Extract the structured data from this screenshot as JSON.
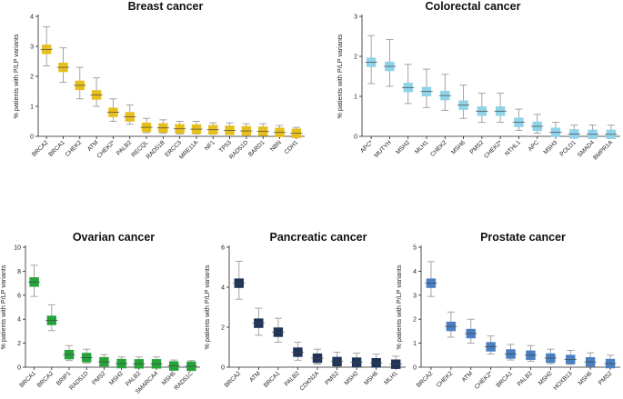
{
  "figure": {
    "ylabel": "% patients with P/LP variants"
  },
  "chart_data": [
    {
      "type": "scatter",
      "title": "Breast cancer",
      "ylabel": "% patients with P/LP variants",
      "ylim": [
        0,
        4
      ],
      "yticks": [
        "0",
        "1",
        "2",
        "3",
        "4"
      ],
      "color": "#E6BE1E",
      "categories": [
        "BRCA2",
        "BRCA1",
        "CHEK2",
        "ATM",
        "CHEK2*",
        "PALB2",
        "RECQL",
        "RAD51B",
        "ERCC3",
        "MRE11A",
        "NF1",
        "TP53",
        "RAD51D",
        "BARD1",
        "NBN",
        "CDH1"
      ],
      "values": [
        2.9,
        2.3,
        1.7,
        1.38,
        0.8,
        0.65,
        0.3,
        0.28,
        0.25,
        0.24,
        0.22,
        0.2,
        0.18,
        0.17,
        0.13,
        0.1
      ],
      "error_low": [
        2.35,
        1.8,
        1.25,
        1.0,
        0.5,
        0.4,
        0.12,
        0.1,
        0.08,
        0.08,
        0.07,
        0.06,
        0.05,
        0.05,
        0.03,
        0.02
      ],
      "error_high": [
        3.65,
        2.95,
        2.3,
        1.95,
        1.25,
        1.05,
        0.6,
        0.55,
        0.5,
        0.5,
        0.45,
        0.45,
        0.42,
        0.42,
        0.36,
        0.3
      ]
    },
    {
      "type": "scatter",
      "title": "Colorectal cancer",
      "ylabel": "% patients with P/LP variants",
      "ylim": [
        0,
        3
      ],
      "yticks": [
        "0",
        "1",
        "2",
        "3"
      ],
      "color": "#8FD3E8",
      "categories": [
        "APC*",
        "MUTYH",
        "MSH2",
        "MLH1",
        "CHEK2",
        "MSH6",
        "PMS2",
        "CHEK2*",
        "NTHL1",
        "APC",
        "MSH3",
        "POLD1",
        "SMAD4",
        "BMPR1A"
      ],
      "values": [
        1.85,
        1.75,
        1.22,
        1.12,
        1.02,
        0.78,
        0.63,
        0.63,
        0.35,
        0.25,
        0.1,
        0.06,
        0.05,
        0.05
      ],
      "error_low": [
        1.32,
        1.25,
        0.82,
        0.72,
        0.65,
        0.45,
        0.35,
        0.35,
        0.15,
        0.08,
        0.0,
        0.0,
        0.0,
        0.0
      ],
      "error_high": [
        2.52,
        2.42,
        1.8,
        1.68,
        1.55,
        1.28,
        1.08,
        1.08,
        0.68,
        0.55,
        0.35,
        0.28,
        0.28,
        0.28
      ]
    },
    {
      "type": "scatter",
      "title": "Ovarian cancer",
      "ylabel": "% patients with P/LP variants",
      "ylim": [
        0,
        10
      ],
      "yticks": [
        "0",
        "2",
        "4",
        "6",
        "8",
        "10"
      ],
      "color": "#26A33A",
      "categories": [
        "BRCA1",
        "BRCA2",
        "BRIP1",
        "RAD51D",
        "PMS2",
        "MSH2",
        "PALB2",
        "SMARCA4",
        "MSH6",
        "RAD51C"
      ],
      "values": [
        7.1,
        3.9,
        1.05,
        0.8,
        0.45,
        0.3,
        0.28,
        0.28,
        0.1,
        0.08
      ],
      "error_low": [
        5.9,
        3.05,
        0.55,
        0.35,
        0.12,
        0.05,
        0.05,
        0.05,
        0.0,
        0.0
      ],
      "error_high": [
        8.5,
        5.2,
        1.8,
        1.5,
        1.05,
        0.85,
        0.85,
        0.85,
        0.6,
        0.55
      ]
    },
    {
      "type": "scatter",
      "title": "Pancreatic cancer",
      "ylabel": "% patients with P/LP variants",
      "ylim": [
        0,
        6
      ],
      "yticks": [
        "0",
        "2",
        "4",
        "6"
      ],
      "color": "#1E3557",
      "categories": [
        "BRCA2",
        "ATM",
        "BRCA1",
        "PALB2",
        "CDKN2A",
        "PMS2",
        "MSH2",
        "MSH6",
        "MLH1"
      ],
      "values": [
        4.2,
        2.2,
        1.75,
        0.75,
        0.45,
        0.28,
        0.25,
        0.22,
        0.15
      ],
      "error_low": [
        3.4,
        1.6,
        1.25,
        0.35,
        0.15,
        0.05,
        0.05,
        0.05,
        0.0
      ],
      "error_high": [
        5.3,
        2.95,
        2.45,
        1.25,
        0.9,
        0.75,
        0.7,
        0.65,
        0.55
      ]
    },
    {
      "type": "scatter",
      "title": "Prostate cancer",
      "ylabel": "% patients with P/LP variants",
      "ylim": [
        0,
        5
      ],
      "yticks": [
        "0",
        "1",
        "2",
        "3",
        "4",
        "5"
      ],
      "color": "#4A7FC1",
      "categories": [
        "BRCA2",
        "CHEK2",
        "ATM",
        "CHEK2*",
        "BRCA1",
        "PALB2",
        "MSH2",
        "HOXB13",
        "MSH6",
        "PMS2"
      ],
      "values": [
        3.5,
        1.7,
        1.4,
        0.85,
        0.55,
        0.5,
        0.38,
        0.32,
        0.22,
        0.15
      ],
      "error_low": [
        2.95,
        1.25,
        1.0,
        0.55,
        0.3,
        0.25,
        0.15,
        0.12,
        0.05,
        0.02
      ],
      "error_high": [
        4.4,
        2.3,
        2.0,
        1.3,
        0.95,
        0.9,
        0.75,
        0.7,
        0.6,
        0.5
      ]
    }
  ]
}
